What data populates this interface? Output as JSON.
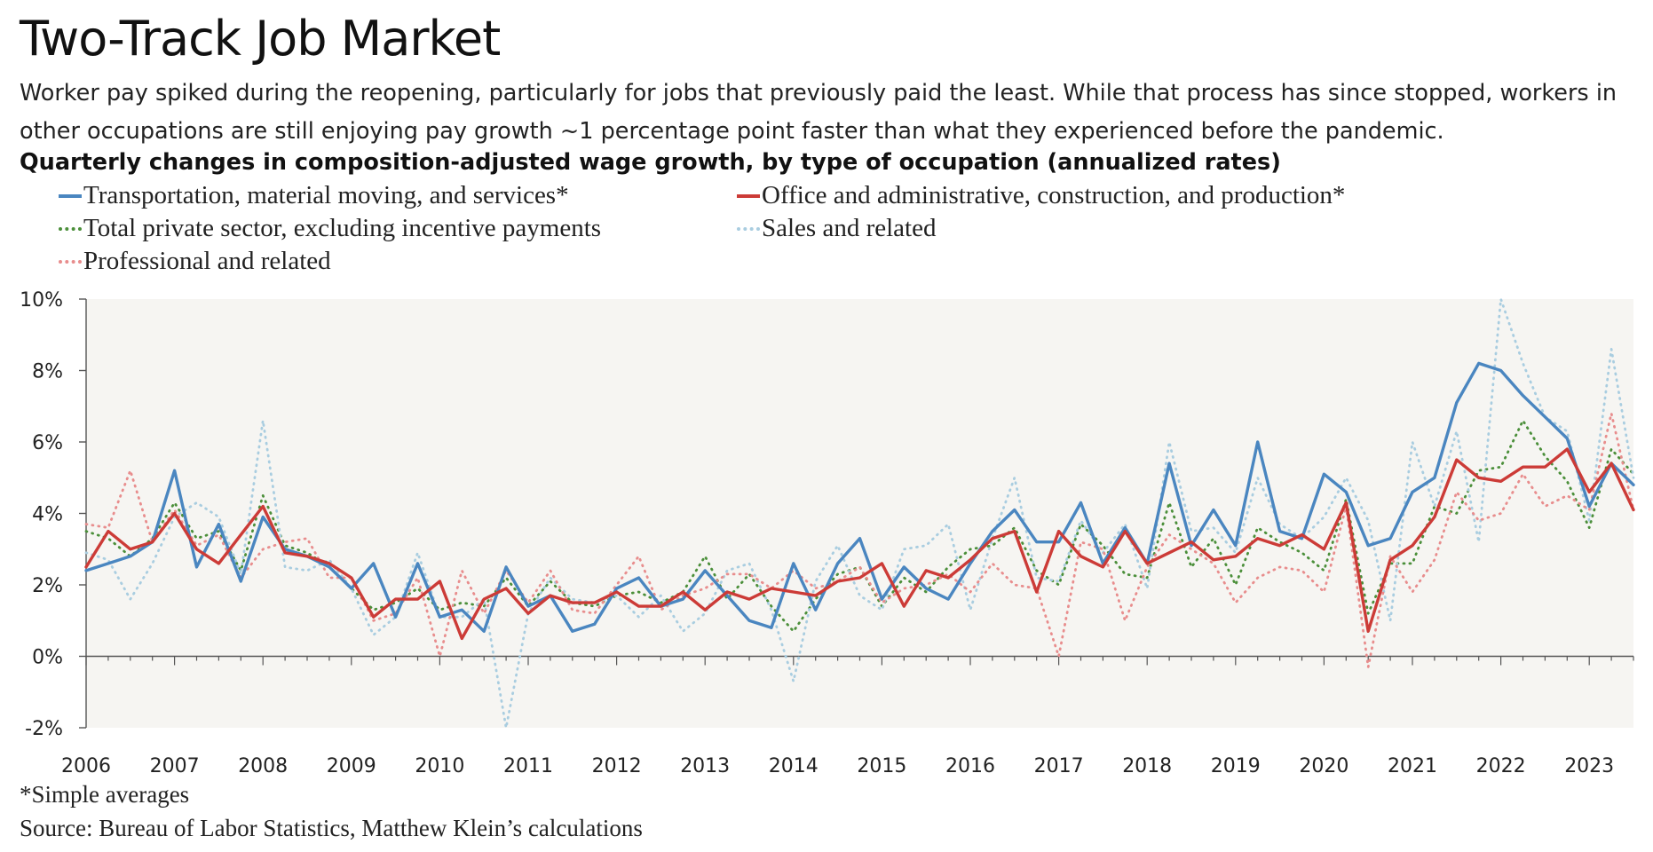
{
  "header": {
    "title": "Two-Track Job Market",
    "subtitle": "Worker pay spiked during the reopening, particularly for jobs that previously paid the least. While that process has since stopped, workers in other occupations are still enjoying pay growth ~1 percentage point faster than what they experienced before the pandemic.",
    "chart_heading": "Quarterly changes in composition-adjusted wage growth, by type of occupation (annualized rates)"
  },
  "footer": {
    "footnote": "*Simple averages",
    "source": "Source: Bureau of Labor Statistics, Matthew Klein’s calculations"
  },
  "colors": {
    "blue": "#4a86c0",
    "red": "#cc3b37",
    "green": "#4b8f3a",
    "lightblue": "#a9cde0",
    "pink": "#e88d8d",
    "plot_bg": "#f6f5f2"
  },
  "chart_data": {
    "type": "line",
    "x_start": "2006 Q1",
    "frequency": "quarterly",
    "xticks": [
      "2006",
      "2007",
      "2008",
      "2009",
      "2010",
      "2011",
      "2012",
      "2013",
      "2014",
      "2015",
      "2016",
      "2017",
      "2018",
      "2019",
      "2020",
      "2021",
      "2022",
      "2023"
    ],
    "yticks": [
      "10%",
      "8%",
      "6%",
      "4%",
      "2%",
      "0%",
      "-2%"
    ],
    "ylim": [
      -2,
      10
    ],
    "grid": false,
    "legend_position": "top",
    "series": [
      {
        "name": "Transportation, material moving, and services*",
        "color": "#4a86c0",
        "style": "solid",
        "values": [
          2.4,
          2.6,
          2.8,
          3.2,
          5.2,
          2.5,
          3.7,
          2.1,
          3.9,
          3.0,
          2.8,
          2.5,
          1.9,
          2.6,
          1.1,
          2.6,
          1.1,
          1.3,
          0.7,
          2.5,
          1.4,
          1.7,
          0.7,
          0.9,
          1.9,
          2.2,
          1.4,
          1.6,
          2.4,
          1.7,
          1.0,
          0.8,
          2.6,
          1.3,
          2.6,
          3.3,
          1.6,
          2.5,
          1.9,
          1.6,
          2.6,
          3.5,
          4.1,
          3.2,
          3.2,
          4.3,
          2.6,
          3.6,
          2.6,
          5.4,
          3.1,
          4.1,
          3.1,
          6.0,
          3.5,
          3.3,
          5.1,
          4.6,
          3.1,
          3.3,
          4.6,
          5.0,
          7.1,
          8.2,
          8.0,
          7.3,
          6.7,
          6.1,
          4.2,
          5.4,
          4.8
        ]
      },
      {
        "name": "Office and administrative, construction, and production*",
        "color": "#cc3b37",
        "style": "solid",
        "values": [
          2.5,
          3.5,
          3.0,
          3.2,
          4.0,
          3.0,
          2.6,
          3.4,
          4.2,
          2.9,
          2.8,
          2.6,
          2.2,
          1.1,
          1.6,
          1.6,
          2.1,
          0.5,
          1.6,
          1.9,
          1.2,
          1.7,
          1.5,
          1.5,
          1.8,
          1.4,
          1.4,
          1.8,
          1.3,
          1.8,
          1.6,
          1.9,
          1.8,
          1.7,
          2.1,
          2.2,
          2.6,
          1.4,
          2.4,
          2.2,
          2.7,
          3.3,
          3.5,
          1.8,
          3.5,
          2.8,
          2.5,
          3.5,
          2.6,
          2.9,
          3.2,
          2.7,
          2.8,
          3.3,
          3.1,
          3.4,
          3.0,
          4.3,
          0.7,
          2.7,
          3.1,
          3.9,
          5.5,
          5.0,
          4.9,
          5.3,
          5.3,
          5.8,
          4.6,
          5.4,
          4.1
        ]
      },
      {
        "name": "Total private sector, excluding incentive payments",
        "color": "#4b8f3a",
        "style": "dotted",
        "values": [
          3.5,
          3.3,
          2.8,
          3.3,
          4.3,
          3.3,
          3.5,
          2.4,
          4.5,
          3.1,
          2.9,
          2.5,
          1.9,
          1.3,
          1.5,
          1.9,
          1.3,
          1.5,
          1.4,
          2.2,
          1.4,
          2.1,
          1.5,
          1.4,
          1.7,
          1.8,
          1.5,
          1.8,
          2.8,
          1.6,
          2.3,
          1.4,
          0.7,
          1.6,
          2.3,
          2.5,
          1.4,
          2.2,
          1.8,
          2.5,
          3.0,
          3.1,
          3.6,
          2.4,
          2.0,
          3.7,
          3.1,
          2.3,
          2.2,
          4.3,
          2.5,
          3.3,
          2.0,
          3.6,
          3.2,
          2.9,
          2.4,
          4.4,
          1.2,
          2.6,
          2.6,
          4.2,
          4.0,
          5.2,
          5.3,
          6.6,
          5.6,
          4.9,
          3.6,
          5.8,
          5.1
        ]
      },
      {
        "name": "Sales and related",
        "color": "#a9cde0",
        "style": "dotted",
        "values": [
          2.9,
          2.7,
          1.6,
          2.6,
          3.9,
          4.3,
          3.9,
          2.3,
          6.6,
          2.5,
          2.4,
          2.7,
          1.9,
          0.6,
          1.1,
          2.9,
          1.1,
          1.1,
          1.6,
          -2.0,
          1.2,
          2.2,
          1.6,
          1.5,
          1.7,
          1.1,
          1.7,
          0.7,
          1.2,
          2.4,
          2.6,
          1.3,
          -0.7,
          2.1,
          3.1,
          1.7,
          1.3,
          3.0,
          3.1,
          3.7,
          1.3,
          3.3,
          5.0,
          2.2,
          2.1,
          3.8,
          2.9,
          3.7,
          1.9,
          6.0,
          3.5,
          3.6,
          2.9,
          5.0,
          3.7,
          3.3,
          3.9,
          5.0,
          3.8,
          1.0,
          6.0,
          4.2,
          6.3,
          3.2,
          10.0,
          8.2,
          6.7,
          6.3,
          3.8,
          8.6,
          5.0
        ]
      },
      {
        "name": "Professional and related",
        "color": "#e88d8d",
        "style": "dotted",
        "values": [
          3.7,
          3.6,
          5.2,
          3.2,
          4.1,
          3.1,
          3.4,
          2.2,
          3.0,
          3.2,
          3.3,
          2.2,
          2.2,
          1.0,
          1.2,
          2.2,
          0.0,
          2.4,
          1.2,
          2.4,
          1.5,
          2.4,
          1.3,
          1.2,
          2.0,
          2.8,
          1.3,
          1.7,
          1.9,
          2.3,
          2.3,
          1.9,
          2.4,
          1.9,
          2.1,
          2.5,
          1.5,
          1.9,
          2.0,
          2.3,
          1.8,
          2.6,
          2.0,
          1.9,
          0.0,
          3.2,
          3.0,
          1.0,
          2.5,
          3.4,
          3.0,
          2.6,
          1.5,
          2.2,
          2.5,
          2.4,
          1.8,
          4.2,
          -0.3,
          2.8,
          1.8,
          2.7,
          4.6,
          3.8,
          4.0,
          5.1,
          4.2,
          4.5,
          4.1,
          6.8,
          4.1
        ]
      }
    ]
  }
}
